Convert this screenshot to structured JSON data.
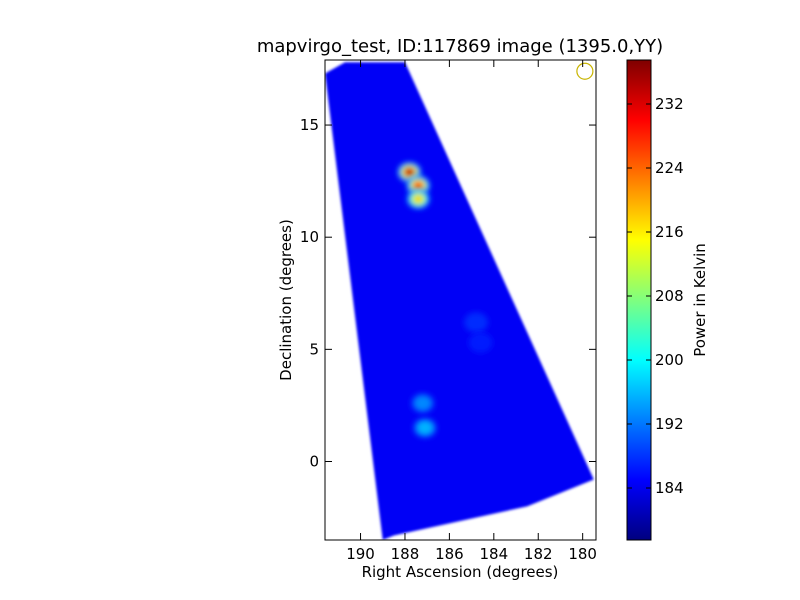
{
  "chart_data": {
    "type": "heatmap",
    "title": "mapvirgo_test, ID:117869 image (1395.0,YY)",
    "xlabel": "Right Ascension (degrees)",
    "ylabel": "Declination (degrees)",
    "xlim": [
      191.6,
      179.4
    ],
    "ylim": [
      -3.5,
      17.9
    ],
    "x_ticks": [
      190,
      188,
      186,
      184,
      182,
      180
    ],
    "y_ticks": [
      0,
      5,
      10,
      15
    ],
    "colorbar": {
      "label": "Power in Kelvin",
      "range": [
        177.5,
        237.5
      ],
      "ticks": [
        184,
        192,
        200,
        208,
        216,
        224,
        232
      ],
      "colormap": [
        "#00007f",
        "#0000ff",
        "#007fff",
        "#00ffff",
        "#7fff7f",
        "#ffff00",
        "#ff7f00",
        "#ff0000",
        "#7f0000"
      ]
    },
    "coverage_polygon": [
      {
        "ra": 191.6,
        "dec": 17.3
      },
      {
        "ra": 190.7,
        "dec": 17.8
      },
      {
        "ra": 188.0,
        "dec": 17.8
      },
      {
        "ra": 179.5,
        "dec": -0.8
      },
      {
        "ra": 182.5,
        "dec": -2.0
      },
      {
        "ra": 188.5,
        "dec": -3.3
      },
      {
        "ra": 189.0,
        "dec": -3.5
      }
    ],
    "background_level": 184,
    "hotspots": [
      {
        "ra": 187.8,
        "dec": 12.9,
        "value": 236
      },
      {
        "ra": 187.4,
        "dec": 12.3,
        "value": 226
      },
      {
        "ra": 187.4,
        "dec": 11.7,
        "value": 218
      },
      {
        "ra": 187.1,
        "dec": 1.5,
        "value": 196
      },
      {
        "ra": 187.2,
        "dec": 2.6,
        "value": 194
      },
      {
        "ra": 184.8,
        "dec": 6.2,
        "value": 188
      },
      {
        "ra": 184.6,
        "dec": 5.3,
        "value": 187
      }
    ],
    "beam_marker": {
      "ra": 179.9,
      "dec": 17.4,
      "color": "#c8b400"
    }
  }
}
